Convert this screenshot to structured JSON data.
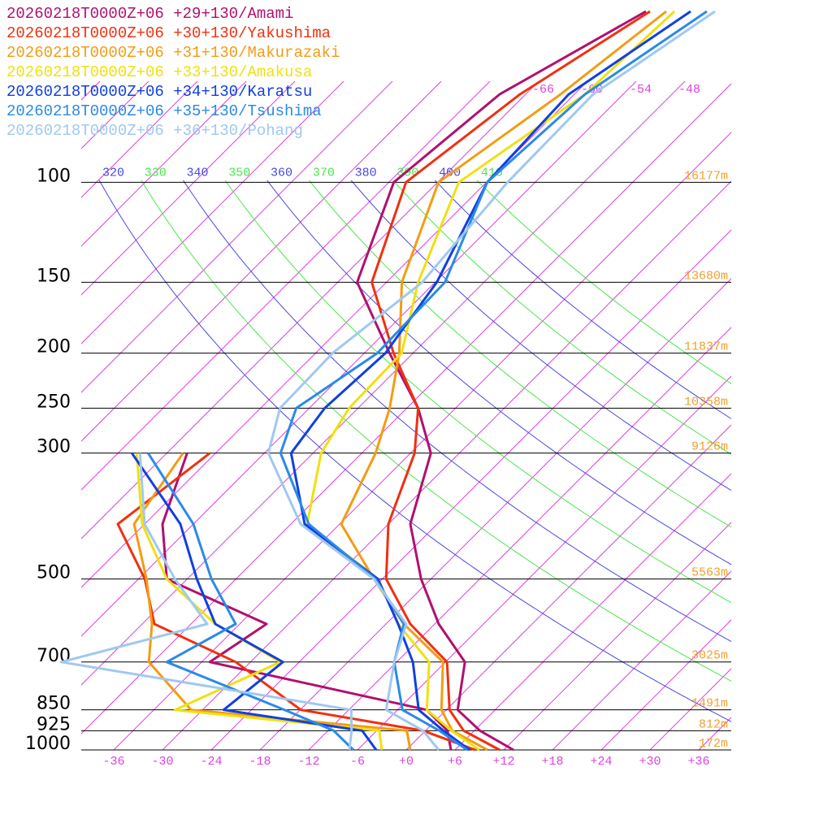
{
  "chart_data": {
    "type": "skewt",
    "y": [
      1000,
      925,
      850,
      700,
      600,
      500,
      400,
      300,
      250,
      200,
      150,
      100,
      70,
      50
    ],
    "ylim": [
      1000,
      50
    ],
    "log_y": true,
    "yticks": [
      100,
      150,
      200,
      250,
      300,
      500,
      700,
      850,
      925,
      1000
    ],
    "height_labels": [
      "16177m",
      "13680m",
      "11837m",
      "10358m",
      "9126m",
      "5563m",
      "3025m",
      "1491m",
      "812m",
      "172m"
    ],
    "xlim": [
      -40,
      40
    ],
    "xticks": [
      -36,
      -30,
      -24,
      -18,
      -12,
      -6,
      {
        "value": 0,
        "label": "+0"
      },
      {
        "value": 6,
        "label": "+6"
      },
      {
        "value": 12,
        "label": "+12"
      },
      {
        "value": 18,
        "label": "+18"
      },
      {
        "value": 24,
        "label": "+24"
      },
      {
        "value": 30,
        "label": "+30"
      },
      {
        "value": 36,
        "label": "+36"
      }
    ],
    "isotherm_labels": [
      -66,
      -60,
      -54,
      -48
    ],
    "isotherm_color": "#e040e0",
    "isentrope_labels": [
      320,
      330,
      340,
      350,
      360,
      370,
      380,
      390,
      400,
      410
    ],
    "isentrope_colors": [
      "#4848e0",
      "#48e848"
    ],
    "height_color": "#f0a030",
    "series": [
      {
        "name": "20260218T0000Z+06 +29+130/Amami",
        "color": "#b0106f",
        "temperature": [
          13.2,
          6.7,
          1.4,
          -3.6,
          -11.5,
          -19.2,
          -27.3,
          -33.5,
          -40.6,
          -50.9,
          -63.6,
          -71.4,
          -69.2,
          -61.4
        ],
        "dewpoint": [
          5.5,
          2.7,
          -2.4,
          -35,
          -32.7,
          -50.5,
          -57.8,
          -63.5,
          null,
          null,
          null,
          null,
          null,
          null
        ]
      },
      {
        "name": "20260218T0000Z+06 +30+130/Yakushima",
        "color": "#f03010",
        "temperature": [
          11.5,
          4.7,
          0.4,
          -5.8,
          -15,
          -23.5,
          -30,
          -35.5,
          -40.6,
          -50.4,
          -61.8,
          -69.9,
          -66.7,
          -60.9
        ],
        "dewpoint": [
          8.5,
          -0.3,
          -17.9,
          -31.8,
          -46.5,
          -53.2,
          -63.3,
          -60.7,
          null,
          null,
          null,
          null,
          null,
          null
        ]
      },
      {
        "name": "20260218T0000Z+06 +31+130/Makurazaki",
        "color": "#f39c12",
        "temperature": [
          10,
          3.3,
          -0.6,
          -6.3,
          -15.8,
          -25,
          -35.8,
          -40.3,
          -44.1,
          -49.7,
          -58.1,
          -65.9,
          -61.7,
          -58.9
        ],
        "dewpoint": [
          0.5,
          -2.3,
          -31.4,
          -42.5,
          -46.8,
          -53,
          -61.3,
          -64,
          null,
          null,
          null,
          null,
          null,
          null
        ]
      },
      {
        "name": "20260218T0000Z+06 +33+130/Amakusa",
        "color": "#f0e010",
        "temperature": [
          9,
          3.2,
          -2.4,
          -8,
          -16.5,
          -24.5,
          -40,
          -47,
          -49.1,
          -49.4,
          -56.1,
          -63.4,
          -58.7,
          -57.9
        ],
        "dewpoint": [
          -3,
          -5.7,
          -33.4,
          -26.3,
          -39,
          -50.5,
          -60.3,
          -69.7,
          null,
          null,
          null,
          null,
          null,
          null
        ]
      },
      {
        "name": "20260218T0000Z+06 +34+130/Karatsu",
        "color": "#1040e0",
        "temperature": [
          7.8,
          2.2,
          -3.4,
          -10,
          -16.5,
          -24.5,
          -40.3,
          -50.7,
          -52.1,
          -51.4,
          -53.8,
          -59.9,
          -60.7,
          -55.9
        ],
        "dewpoint": [
          -3.7,
          -7.8,
          -27.4,
          -26,
          -39,
          -46.8,
          -55.6,
          -70.3,
          null,
          null,
          null,
          null,
          null,
          null
        ]
      },
      {
        "name": "20260218T0000Z+06 +35+130/Tsushima",
        "color": "#2a8ae8",
        "temperature": [
          7.5,
          1.7,
          -5.4,
          -12.3,
          -15.8,
          -24.8,
          -39.8,
          -52,
          -55.6,
          -52.4,
          -52.8,
          -59.9,
          -58.7,
          -53.9
        ],
        "dewpoint": [
          -6.5,
          -11.3,
          -19.9,
          -40.3,
          -36.5,
          -45,
          -54,
          -68.3,
          null,
          null,
          null,
          null,
          null,
          null
        ]
      },
      {
        "name": "20260218T0000Z+06 +36+130/Pohang",
        "color": "#a0c8f0",
        "temperature": [
          4,
          -0.3,
          -7.4,
          -12.3,
          -15.5,
          -25,
          -40.8,
          -53.5,
          -57.6,
          -57.9,
          -55.6,
          -57.4,
          -57.7,
          -52.9
        ],
        "dewpoint": [
          -7,
          -9.1,
          -11.7,
          -53.3,
          -40,
          -49.5,
          -60,
          -69.3,
          null,
          null,
          null,
          null,
          null,
          null
        ]
      }
    ]
  }
}
